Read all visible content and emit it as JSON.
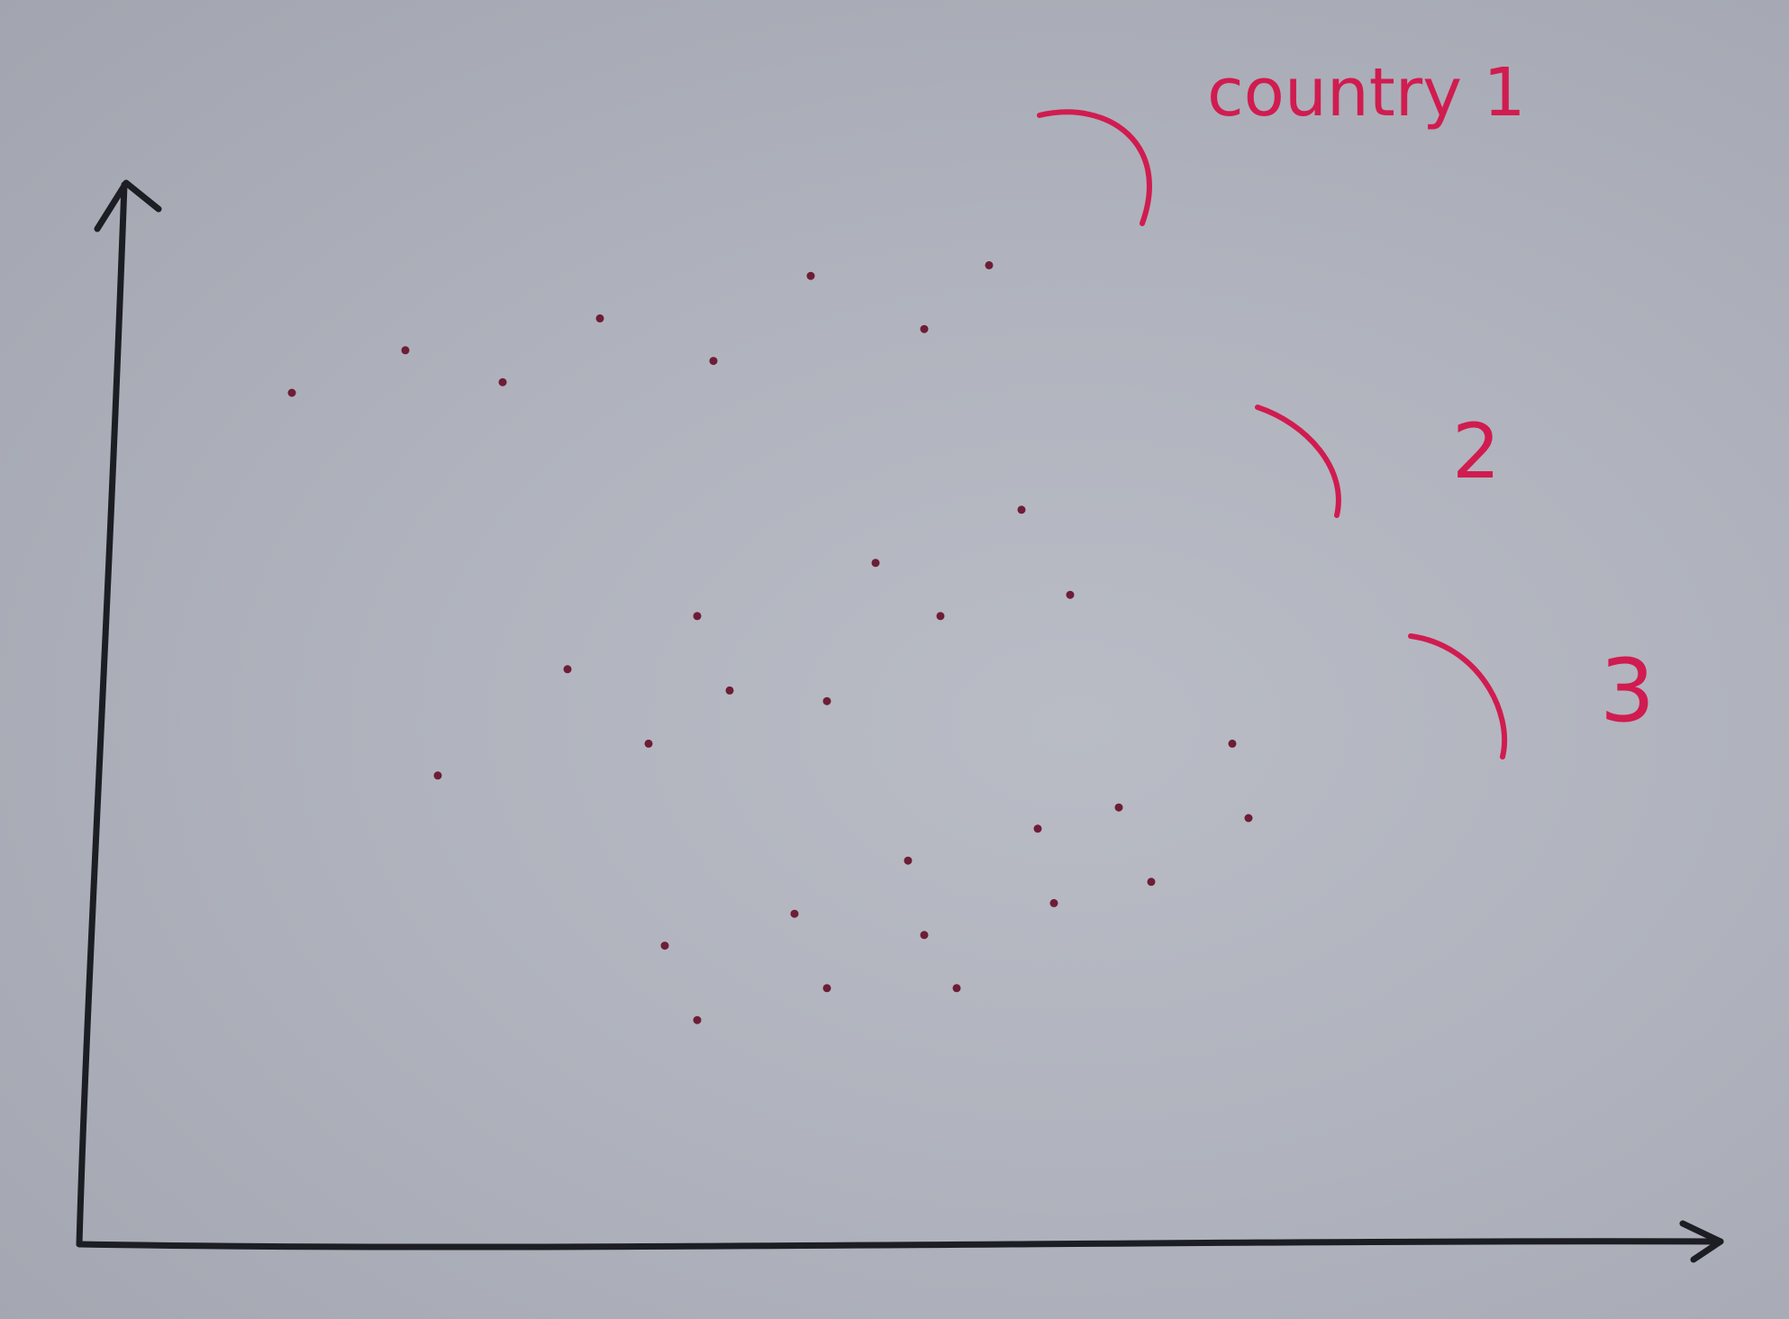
{
  "chart_data": {
    "type": "scatter",
    "title": "",
    "xlabel": "",
    "ylabel": "",
    "xlim": [
      0,
      100
    ],
    "ylim": [
      0,
      100
    ],
    "grid": false,
    "colors": {
      "axes": "#1c1e24",
      "points": "#6e1d36",
      "annotation": "#d01c50",
      "background": "#b3b6bf"
    },
    "points": [
      {
        "x": 13,
        "y": 80
      },
      {
        "x": 20,
        "y": 84
      },
      {
        "x": 26,
        "y": 81
      },
      {
        "x": 32,
        "y": 87
      },
      {
        "x": 39,
        "y": 83
      },
      {
        "x": 45,
        "y": 91
      },
      {
        "x": 52,
        "y": 86
      },
      {
        "x": 56,
        "y": 92
      },
      {
        "x": 22,
        "y": 44
      },
      {
        "x": 30,
        "y": 54
      },
      {
        "x": 35,
        "y": 47
      },
      {
        "x": 38,
        "y": 59
      },
      {
        "x": 40,
        "y": 52
      },
      {
        "x": 46,
        "y": 51
      },
      {
        "x": 49,
        "y": 64
      },
      {
        "x": 53,
        "y": 59
      },
      {
        "x": 58,
        "y": 69
      },
      {
        "x": 61,
        "y": 61
      },
      {
        "x": 36,
        "y": 28
      },
      {
        "x": 38,
        "y": 21
      },
      {
        "x": 44,
        "y": 31
      },
      {
        "x": 46,
        "y": 24
      },
      {
        "x": 51,
        "y": 36
      },
      {
        "x": 52,
        "y": 29
      },
      {
        "x": 54,
        "y": 24
      },
      {
        "x": 59,
        "y": 39
      },
      {
        "x": 60,
        "y": 32
      },
      {
        "x": 64,
        "y": 41
      },
      {
        "x": 66,
        "y": 34
      },
      {
        "x": 71,
        "y": 47
      },
      {
        "x": 72,
        "y": 40
      }
    ],
    "annotations": [
      {
        "text": "country 1",
        "series": 1
      },
      {
        "text": "2",
        "series": 2
      },
      {
        "text": "3",
        "series": 3
      }
    ]
  }
}
